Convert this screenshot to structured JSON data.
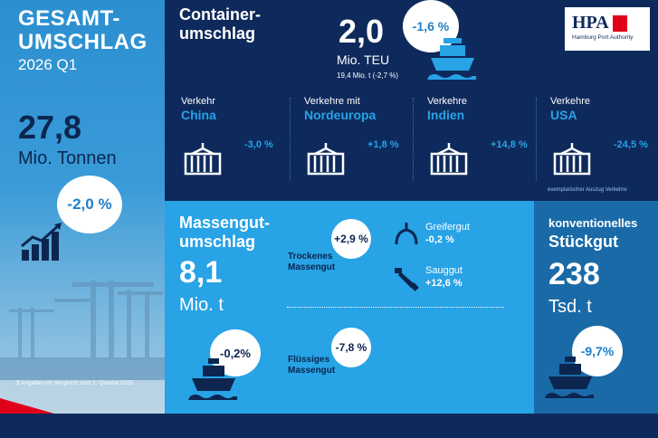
{
  "left": {
    "title_line1": "GESAMT-",
    "title_line2": "UMSCHLAG",
    "period": "2026 Q1",
    "value": "27,8",
    "unit": "Mio. Tonnen",
    "change": "-2,0 %",
    "footnote": "$ Angaben im Vergleich zum 1. Quartal 2025"
  },
  "container": {
    "title_line1": "Container-",
    "title_line2": "umschlag",
    "value": "2,0",
    "unit": "Mio. TEU",
    "sub": "19,4 Mio. t (-2,7 %)",
    "change": "-1,6 %",
    "traffic": [
      {
        "label": "Verkehr",
        "region": "China",
        "change": "-3,0 %"
      },
      {
        "label": "Verkehre mit",
        "region": "Nordeuropa",
        "change": "+1,8 %"
      },
      {
        "label": "Verkehre",
        "region": "Indien",
        "change": "+14,8 %"
      },
      {
        "label": "Verkehre",
        "region": "USA",
        "change": "-24,5 %"
      }
    ],
    "note": "exemplarischer Auszug Verkehre"
  },
  "logo": {
    "letters": "HPA",
    "name": "Hamburg Port Authority"
  },
  "bulk": {
    "title_line1": "Massengut-",
    "title_line2": "umschlag",
    "value": "8,1",
    "unit": "Mio. t",
    "change": "-0,2%",
    "dry": {
      "label_line1": "Trockenes",
      "label_line2": "Massengut",
      "change": "+2,9 %"
    },
    "liquid": {
      "label_line1": "Flüssiges",
      "label_line2": "Massengut",
      "change": "-7,8 %"
    },
    "grab": {
      "label": "Greifergut",
      "change": "-0,2 %"
    },
    "suction": {
      "label": "Sauggut",
      "change": "+12,6 %"
    }
  },
  "conventional": {
    "title_line1": "konventionelles",
    "title_line2": "Stückgut",
    "value": "238",
    "unit": "Tsd. t",
    "change": "-9,7%"
  },
  "colors": {
    "navy": "#0e2a5c",
    "light_blue": "#27a3e6",
    "mid_blue": "#1a6aa8",
    "red": "#e1001a"
  }
}
